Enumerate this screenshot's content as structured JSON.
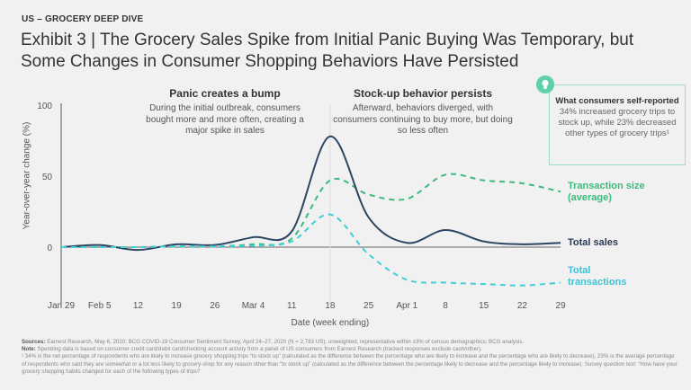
{
  "kicker": "US – GROCERY DEEP DIVE",
  "title": "Exhibit 3 | The Grocery Sales Spike from Initial Panic Buying Was Temporary, but Some Changes in Consumer Shopping Behaviors Have Persisted",
  "annotations": {
    "panic_heading": "Panic creates a bump",
    "panic_text": "During the initial outbreak, consumers bought more and more often, creating a major spike in sales",
    "stock_heading": "Stock-up behavior persists",
    "stock_text": "Afterward, behaviors diverged, with consumers continuing to buy more, but doing so less often"
  },
  "callout": {
    "icon": "lightbulb-icon",
    "heading": "What consumers self-reported",
    "text": "34% increased grocery trips to stock up, while 23% decreased other types of grocery trips¹"
  },
  "chart_data": {
    "type": "line",
    "xlabel": "Date (week ending)",
    "ylabel": "Year-over-year change (%)",
    "ylim": [
      -40,
      100
    ],
    "yticks": [
      "0",
      "50",
      "100"
    ],
    "categories": [
      "Jan 29",
      "Feb 5",
      "12",
      "19",
      "26",
      "Mar 4",
      "11",
      "18",
      "25",
      "Apr 1",
      "8",
      "15",
      "22",
      "29"
    ],
    "reference_line": "18",
    "grid": false,
    "series": [
      {
        "name": "Transaction size (average)",
        "style": "dashed",
        "color": "#3dba7e",
        "values": [
          0,
          0,
          0,
          0.5,
          0.5,
          2,
          6,
          47,
          37,
          34,
          51,
          47,
          45,
          39
        ]
      },
      {
        "name": "Total sales",
        "style": "solid",
        "color": "#2b4564",
        "values": [
          0,
          1.5,
          -2,
          2,
          1.5,
          7,
          11,
          78,
          21,
          3,
          12,
          4,
          2,
          3
        ]
      },
      {
        "name": "Total transactions",
        "style": "dashed",
        "color": "#3ed0d6",
        "values": [
          0,
          0,
          0,
          0.5,
          0.5,
          1,
          4,
          23,
          -5,
          -23,
          -25,
          -26,
          -27,
          -25
        ]
      }
    ],
    "legend_labels": [
      "Transaction size",
      "(average)",
      "Total sales",
      "Total",
      "transactions"
    ]
  },
  "footnotes": {
    "sources_label": "Sources:",
    "sources": "Earnest Research, May 6, 2020; BCG COVID-19 Consumer Sentiment Survey, April 24–27, 2020 (N = 2,783 US), unweighted, representative within ±3% of census demographics; BCG analysis.",
    "note_label": "Note:",
    "note": "Spending data is based on consumer credit card/debit card/checking account activity from a panel of US consumers from Earnest Research (tracked responses exclude cash/other).",
    "footnote1": "¹ 34% is the net percentage of respondents who are likely to increase grocery shopping trips “to stock up” (calculated as the difference between the percentage who are likely to increase and the percentage who are likely to decrease); 23% is the average percentage of respondents who said they are somewhat or a lot less likely to grocery-shop for any reason other than “to stock up” (calculated as the difference between the percentage likely to decrease and the percentage likely to increase). Survey question text: “How have your grocery shopping habits changed for each of the following types of trips?"
  }
}
